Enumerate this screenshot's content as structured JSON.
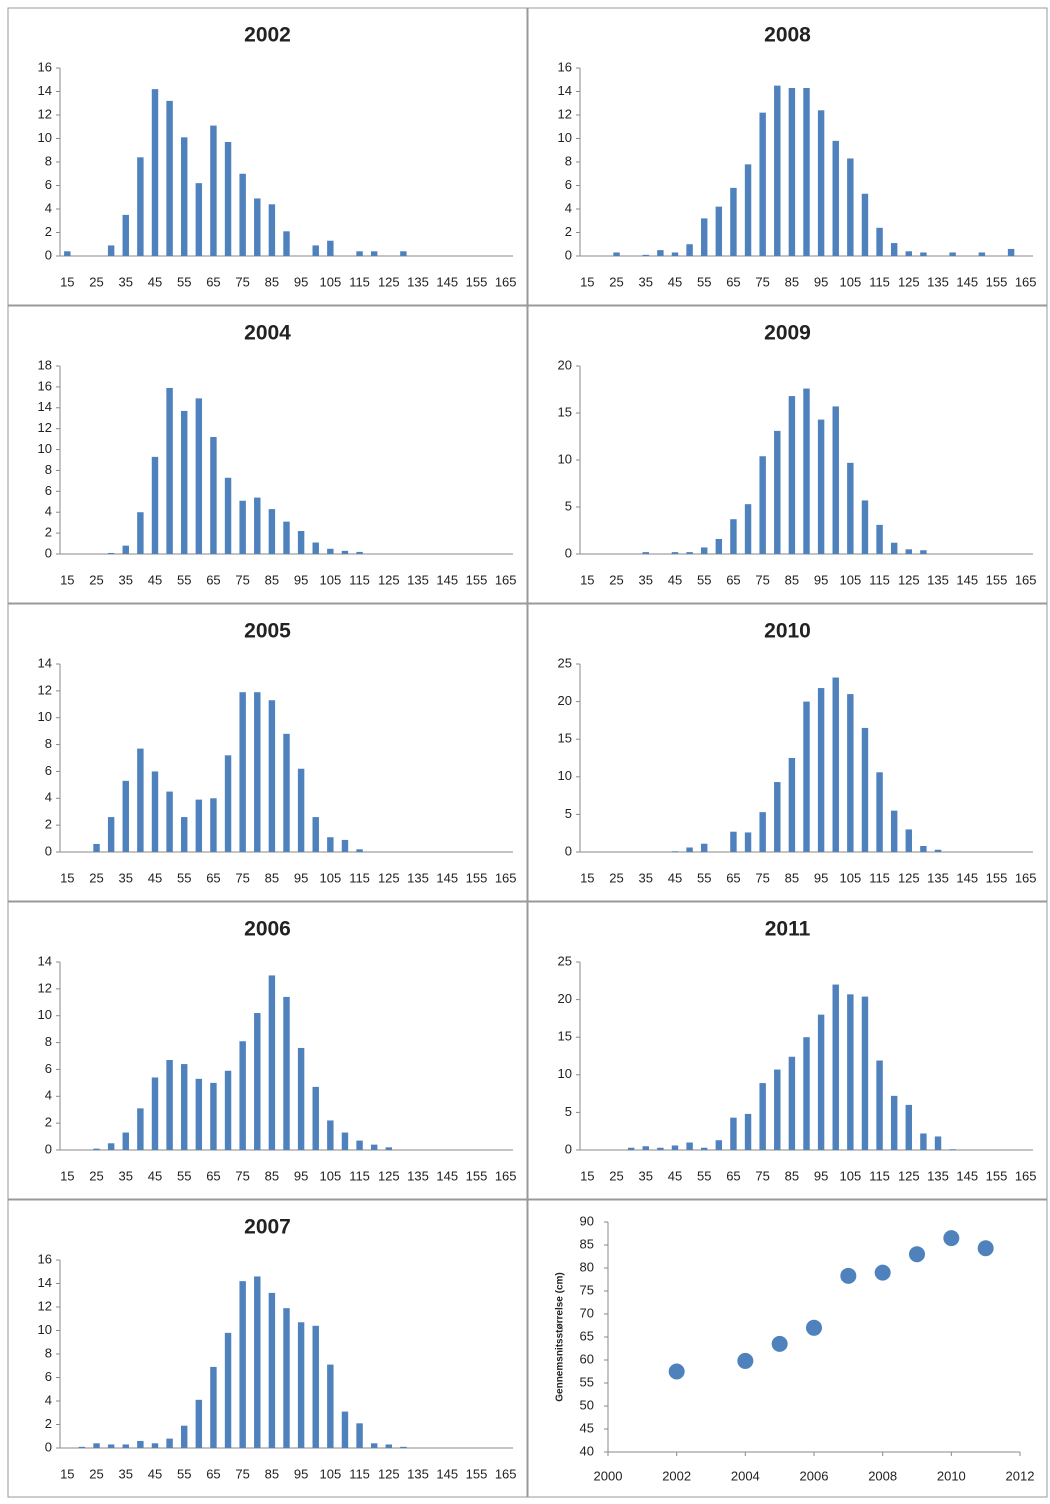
{
  "chart_data": [
    {
      "type": "bar",
      "title": "2002",
      "color": "#4f81bd",
      "ylim": [
        0,
        16
      ],
      "yticks": [
        0,
        2,
        4,
        6,
        8,
        10,
        12,
        14,
        16
      ],
      "categories": [
        "15",
        null,
        "25",
        null,
        "35",
        null,
        "45",
        null,
        "55",
        null,
        "65",
        null,
        "75",
        null,
        "85",
        null,
        "95",
        null,
        "105",
        null,
        "115",
        null,
        "125",
        null,
        "135",
        null,
        "145",
        null,
        "155",
        null,
        "165"
      ],
      "values": [
        0.4,
        0,
        0,
        0.9,
        3.5,
        8.4,
        14.2,
        13.2,
        10.1,
        6.2,
        11.1,
        9.7,
        7,
        4.9,
        4.4,
        2.1,
        0,
        0.9,
        1.3,
        0,
        0.4,
        0.4,
        0,
        0.4,
        0,
        0,
        0,
        0,
        0,
        0,
        0
      ]
    },
    {
      "type": "bar",
      "title": "2008",
      "color": "#4f81bd",
      "ylim": [
        0,
        16
      ],
      "yticks": [
        0,
        2,
        4,
        6,
        8,
        10,
        12,
        14,
        16
      ],
      "categories": [
        "15",
        null,
        "25",
        null,
        "35",
        null,
        "45",
        null,
        "55",
        null,
        "65",
        null,
        "75",
        null,
        "85",
        null,
        "95",
        null,
        "105",
        null,
        "115",
        null,
        "125",
        null,
        "135",
        null,
        "145",
        null,
        "155",
        null,
        "165"
      ],
      "values": [
        0,
        0,
        0.3,
        0,
        0.1,
        0.5,
        0.3,
        1,
        3.2,
        4.2,
        5.8,
        7.8,
        12.2,
        14.5,
        14.3,
        14.3,
        12.4,
        9.8,
        8.3,
        5.3,
        2.4,
        1.1,
        0.4,
        0.3,
        0,
        0.3,
        0,
        0.3,
        0,
        0.6,
        0
      ]
    },
    {
      "type": "bar",
      "title": "2004",
      "color": "#4f81bd",
      "ylim": [
        0,
        18
      ],
      "yticks": [
        0,
        2,
        4,
        6,
        8,
        10,
        12,
        14,
        16,
        18
      ],
      "categories": [
        "15",
        null,
        "25",
        null,
        "35",
        null,
        "45",
        null,
        "55",
        null,
        "65",
        null,
        "75",
        null,
        "85",
        null,
        "95",
        null,
        "105",
        null,
        "115",
        null,
        "125",
        null,
        "135",
        null,
        "145",
        null,
        "155",
        null,
        "165"
      ],
      "values": [
        0,
        0,
        0,
        0.1,
        0.8,
        4,
        9.3,
        15.9,
        13.7,
        14.9,
        11.2,
        7.3,
        5.1,
        5.4,
        4.3,
        3.1,
        2.2,
        1.1,
        0.5,
        0.3,
        0.2,
        0,
        0,
        0,
        0,
        0,
        0,
        0,
        0,
        0,
        0
      ]
    },
    {
      "type": "bar",
      "title": "2009",
      "color": "#4f81bd",
      "ylim": [
        0,
        20
      ],
      "yticks": [
        0,
        5,
        10,
        15,
        20
      ],
      "categories": [
        "15",
        null,
        "25",
        null,
        "35",
        null,
        "45",
        null,
        "55",
        null,
        "65",
        null,
        "75",
        null,
        "85",
        null,
        "95",
        null,
        "105",
        null,
        "115",
        null,
        "125",
        null,
        "135",
        null,
        "145",
        null,
        "155",
        null,
        "165"
      ],
      "values": [
        0,
        0,
        0,
        0,
        0.2,
        0,
        0.2,
        0.2,
        0.7,
        1.6,
        3.7,
        5.3,
        10.4,
        13.1,
        16.8,
        17.6,
        14.3,
        15.7,
        9.7,
        5.7,
        3.1,
        1.2,
        0.5,
        0.4,
        0,
        0,
        0,
        0,
        0,
        0,
        0
      ]
    },
    {
      "type": "bar",
      "title": "2005",
      "color": "#4f81bd",
      "ylim": [
        0,
        14
      ],
      "yticks": [
        0,
        2,
        4,
        6,
        8,
        10,
        12,
        14
      ],
      "categories": [
        "15",
        null,
        "25",
        null,
        "35",
        null,
        "45",
        null,
        "55",
        null,
        "65",
        null,
        "75",
        null,
        "85",
        null,
        "95",
        null,
        "105",
        null,
        "115",
        null,
        "125",
        null,
        "135",
        null,
        "145",
        null,
        "155",
        null,
        "165"
      ],
      "values": [
        0,
        0,
        0.6,
        2.6,
        5.3,
        7.7,
        6,
        4.5,
        2.6,
        3.9,
        4,
        7.2,
        11.9,
        11.9,
        11.3,
        8.8,
        6.2,
        2.6,
        1.1,
        0.9,
        0.2,
        0,
        0,
        0,
        0,
        0,
        0,
        0,
        0,
        0,
        0
      ]
    },
    {
      "type": "bar",
      "title": "2010",
      "color": "#4f81bd",
      "ylim": [
        0,
        25
      ],
      "yticks": [
        0,
        5,
        10,
        15,
        20,
        25
      ],
      "categories": [
        "15",
        null,
        "25",
        null,
        "35",
        null,
        "45",
        null,
        "55",
        null,
        "65",
        null,
        "75",
        null,
        "85",
        null,
        "95",
        null,
        "105",
        null,
        "115",
        null,
        "125",
        null,
        "135",
        null,
        "145",
        null,
        "155",
        null,
        "165"
      ],
      "values": [
        0,
        0,
        0,
        0,
        0,
        0,
        0.1,
        0.6,
        1.1,
        0,
        2.7,
        2.6,
        5.3,
        9.3,
        12.5,
        20,
        21.8,
        23.2,
        21,
        16.5,
        10.6,
        5.5,
        3,
        0.8,
        0.3,
        0,
        0,
        0,
        0,
        0,
        0
      ]
    },
    {
      "type": "bar",
      "title": "2006",
      "color": "#4f81bd",
      "ylim": [
        0,
        14
      ],
      "yticks": [
        0,
        2,
        4,
        6,
        8,
        10,
        12,
        14
      ],
      "categories": [
        "15",
        null,
        "25",
        null,
        "35",
        null,
        "45",
        null,
        "55",
        null,
        "65",
        null,
        "75",
        null,
        "85",
        null,
        "95",
        null,
        "105",
        null,
        "115",
        null,
        "125",
        null,
        "135",
        null,
        "145",
        null,
        "155",
        null,
        "165"
      ],
      "values": [
        0,
        0,
        0.1,
        0.5,
        1.3,
        3.1,
        5.4,
        6.7,
        6.4,
        5.3,
        5,
        5.9,
        8.1,
        10.2,
        13,
        11.4,
        7.6,
        4.7,
        2.2,
        1.3,
        0.7,
        0.4,
        0.2,
        0,
        0,
        0,
        0,
        0,
        0,
        0,
        0
      ]
    },
    {
      "type": "bar",
      "title": "2011",
      "color": "#4f81bd",
      "ylim": [
        0,
        25
      ],
      "yticks": [
        0,
        5,
        10,
        15,
        20,
        25
      ],
      "categories": [
        "15",
        null,
        "25",
        null,
        "35",
        null,
        "45",
        null,
        "55",
        null,
        "65",
        null,
        "75",
        null,
        "85",
        null,
        "95",
        null,
        "105",
        null,
        "115",
        null,
        "125",
        null,
        "135",
        null,
        "145",
        null,
        "155",
        null,
        "165"
      ],
      "values": [
        0,
        0,
        0,
        0.3,
        0.5,
        0.3,
        0.6,
        1,
        0.3,
        1.3,
        4.3,
        4.8,
        8.9,
        10.7,
        12.4,
        15,
        18,
        22,
        20.7,
        20.4,
        11.9,
        7.2,
        6,
        2.2,
        1.8,
        0.1,
        0,
        0,
        0,
        0,
        0
      ]
    },
    {
      "type": "bar",
      "title": "2007",
      "color": "#4f81bd",
      "ylim": [
        0,
        16
      ],
      "yticks": [
        0,
        2,
        4,
        6,
        8,
        10,
        12,
        14,
        16
      ],
      "categories": [
        "15",
        null,
        "25",
        null,
        "35",
        null,
        "45",
        null,
        "55",
        null,
        "65",
        null,
        "75",
        null,
        "85",
        null,
        "95",
        null,
        "105",
        null,
        "115",
        null,
        "125",
        null,
        "135",
        null,
        "145",
        null,
        "155",
        null,
        "165"
      ],
      "values": [
        0,
        0.1,
        0.4,
        0.3,
        0.3,
        0.6,
        0.4,
        0.8,
        1.9,
        4.1,
        6.9,
        9.8,
        14.2,
        14.6,
        13.2,
        11.9,
        10.7,
        10.4,
        7.1,
        3.1,
        2.1,
        0.4,
        0.3,
        0.1,
        0,
        0,
        0,
        0,
        0,
        0,
        0
      ]
    },
    {
      "type": "scatter",
      "ylabel": "Gennemsnitsstørrelse (cm)",
      "color": "#4f81bd",
      "xlim": [
        2000,
        2012
      ],
      "xticks": [
        2000,
        2002,
        2004,
        2006,
        2008,
        2010,
        2012
      ],
      "ylim": [
        40,
        90
      ],
      "yticks": [
        40,
        45,
        50,
        55,
        60,
        65,
        70,
        75,
        80,
        85,
        90
      ],
      "x": [
        2002,
        2004,
        2005,
        2006,
        2007,
        2008,
        2009,
        2010,
        2011
      ],
      "values": [
        57.5,
        59.8,
        63.5,
        67,
        78.3,
        79,
        83,
        86.5,
        84.3
      ]
    }
  ]
}
